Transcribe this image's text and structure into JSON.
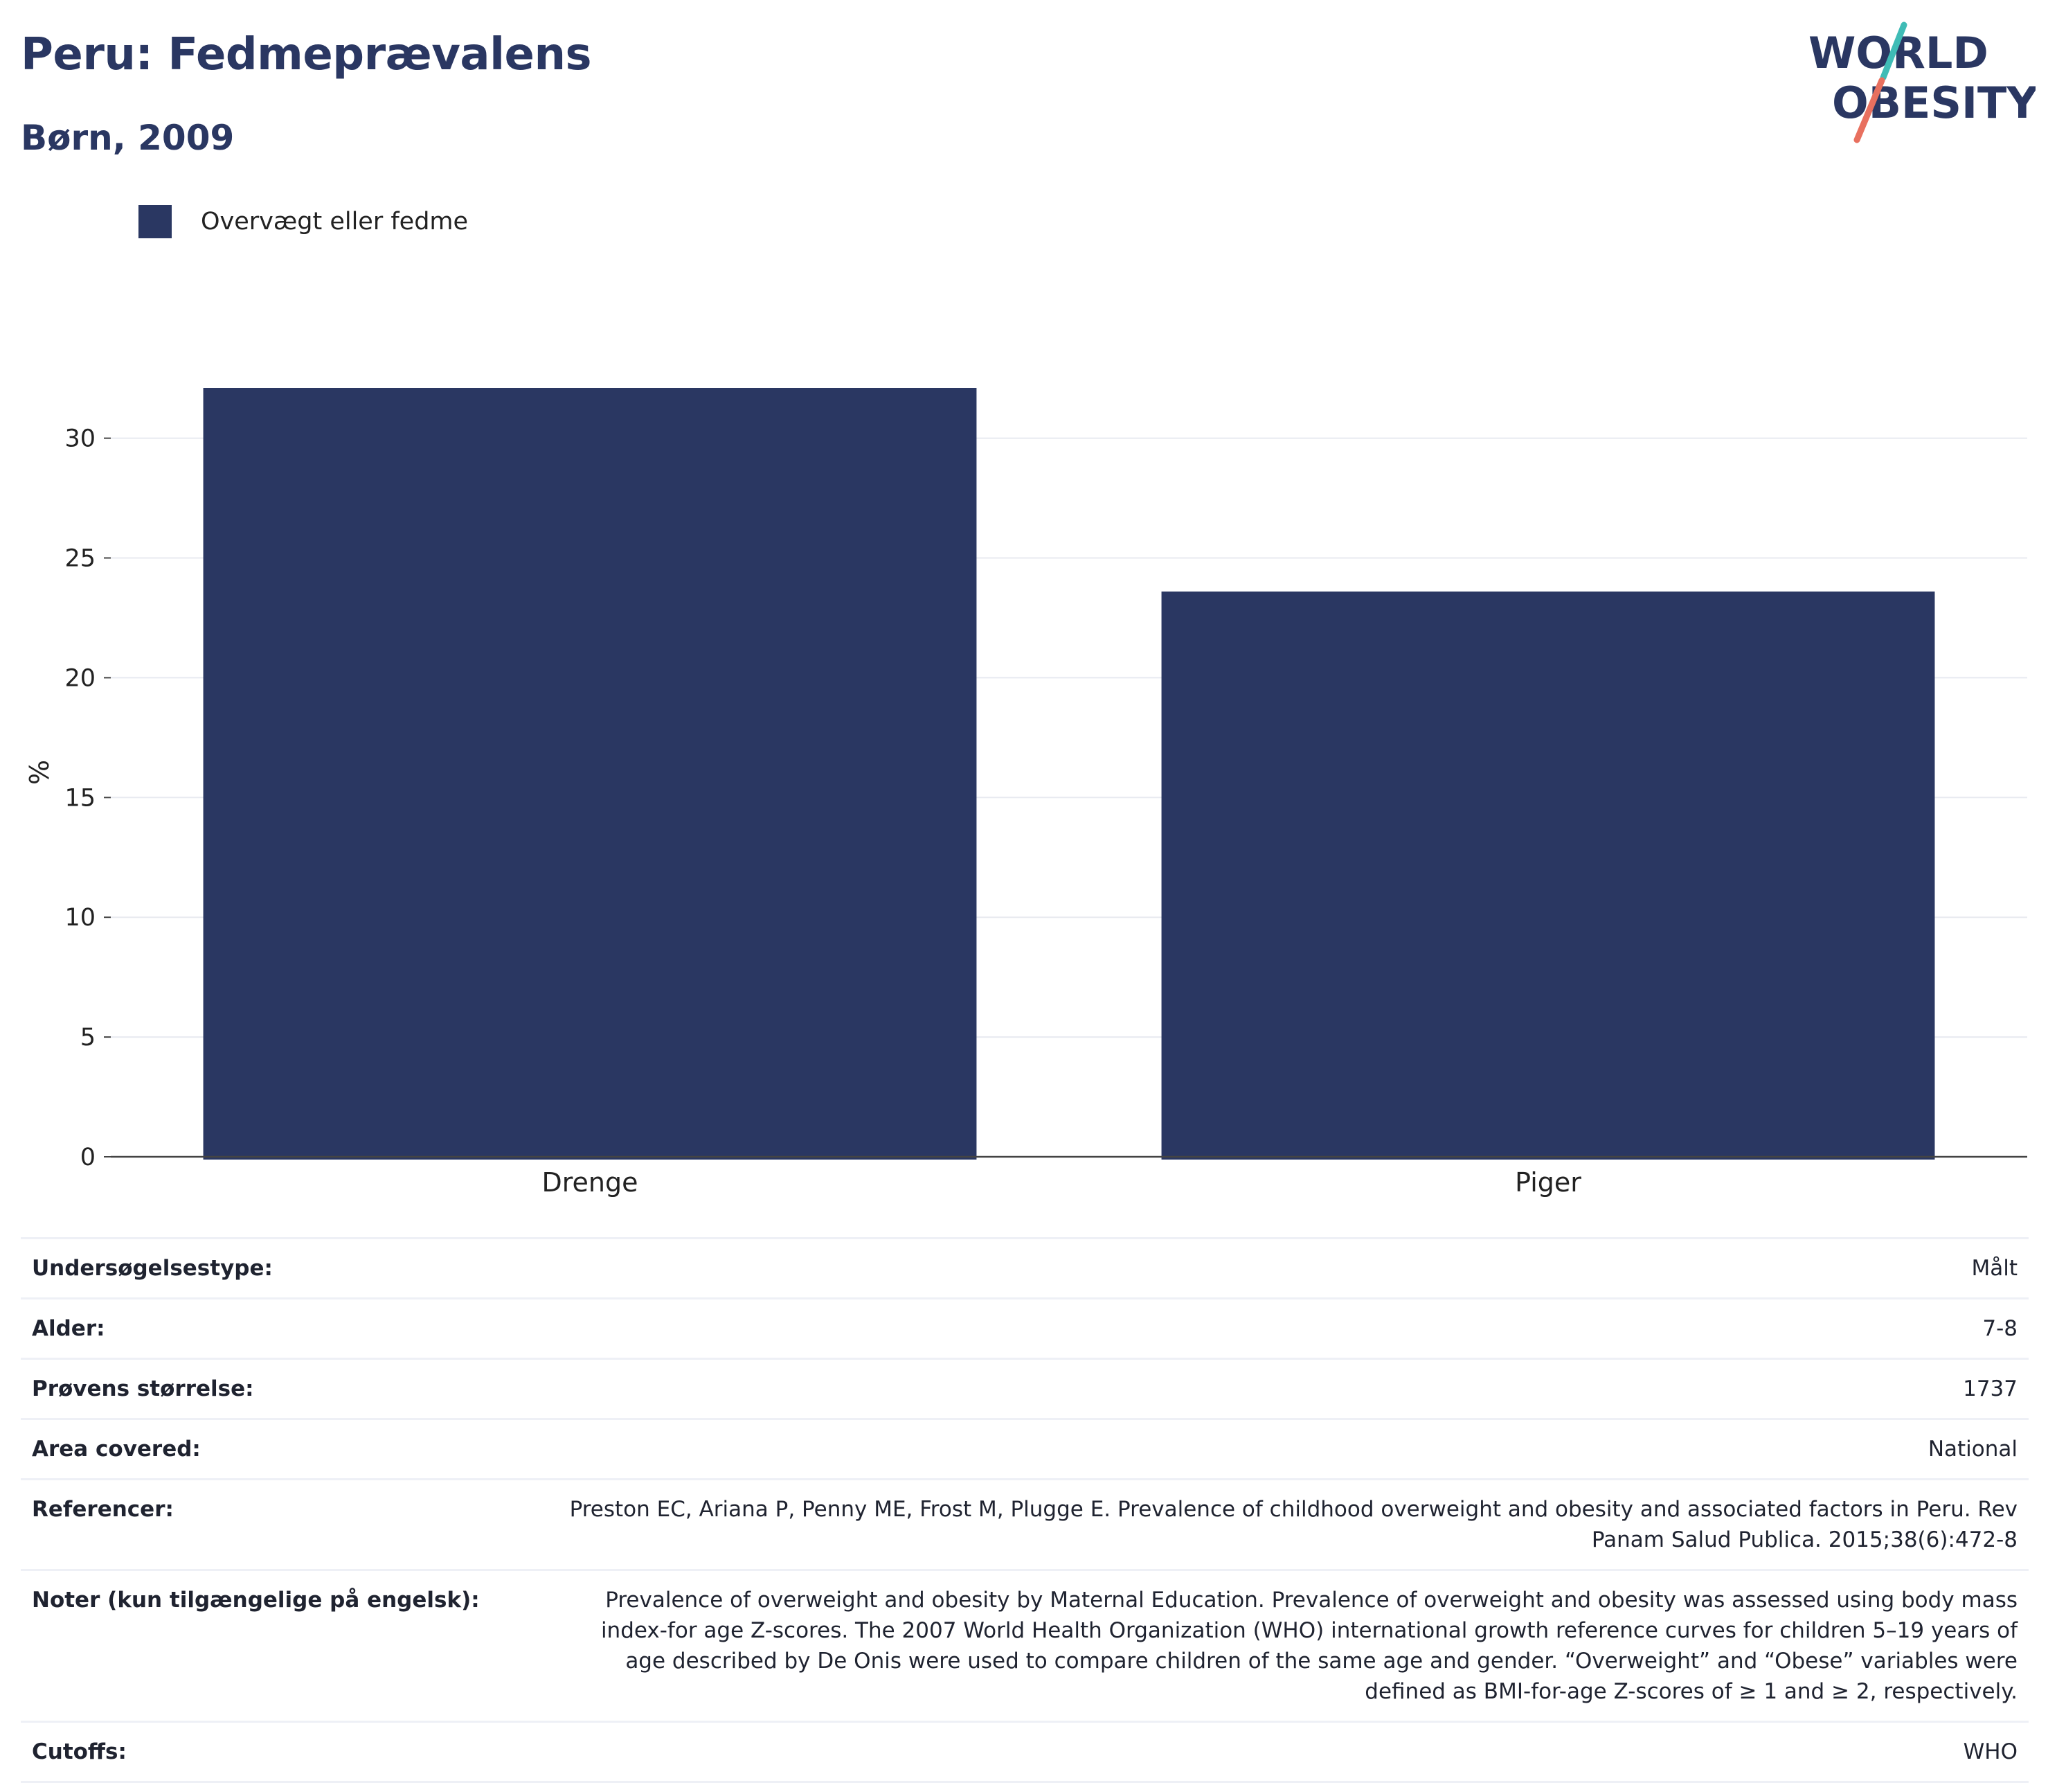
{
  "header": {
    "title": "Peru: Fedmeprævalens",
    "subtitle": "Børn, 2009"
  },
  "logo": {
    "line1": "WORLD",
    "line2": "OBESITY",
    "colors": {
      "text": "#2a3762",
      "teal": "#3fbcb6",
      "coral": "#e8705f"
    }
  },
  "legend": {
    "label": "Overvægt eller fedme",
    "color": "#2a3762"
  },
  "chart_data": {
    "type": "bar",
    "categories": [
      "Drenge",
      "Piger"
    ],
    "series": [
      {
        "name": "Overvægt eller fedme",
        "values": [
          32.1,
          23.6
        ],
        "color": "#2a3762"
      }
    ],
    "ylabel": "%",
    "ylim": [
      0,
      32.1
    ],
    "yticks": [
      0,
      5,
      10,
      15,
      20,
      25,
      30
    ],
    "grid": true,
    "legend_position": "top-left"
  },
  "meta": [
    {
      "key": "Undersøgelsestype:",
      "value": "Målt"
    },
    {
      "key": "Alder:",
      "value": "7-8"
    },
    {
      "key": "Prøvens størrelse:",
      "value": "1737"
    },
    {
      "key": "Area covered:",
      "value": "National"
    },
    {
      "key": "Referencer:",
      "value": "Preston EC, Ariana P, Penny ME, Frost M, Plugge E. Prevalence of childhood overweight and obesity and associated factors in Peru. Rev Panam Salud Publica. 2015;38(6):472-8"
    },
    {
      "key": "Noter (kun tilgængelige på engelsk):",
      "value": "Prevalence of overweight and obesity by Maternal Education. Prevalence of overweight and obesity was assessed using body mass index-for age Z-scores. The 2007 World Health Organization (WHO) international growth reference curves for children 5–19 years of age described by De Onis were used to compare children of the same age and gender. “Overweight” and “Obese” variables were defined as BMI-for-age Z-scores of ≥ 1 and ≥ 2, respectively."
    },
    {
      "key": "Cutoffs:",
      "value": "WHO"
    }
  ]
}
